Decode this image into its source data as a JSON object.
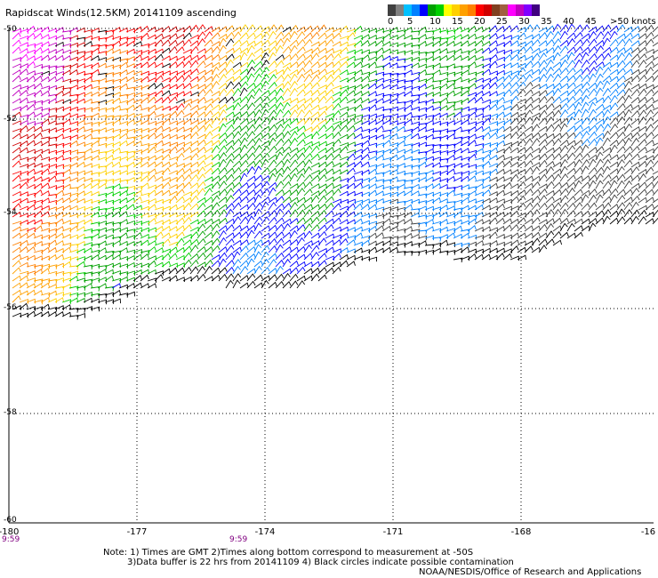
{
  "title": "Rapidscat Winds(12.5KM) 20141109 ascending",
  "legend": {
    "unit_label": ">50 knots",
    "ticks": [
      "0",
      "5",
      "10",
      "15",
      "20",
      "25",
      "30",
      "35",
      "40",
      "45"
    ],
    "colors": [
      "#404040",
      "#808080",
      "#00c0ff",
      "#0080ff",
      "#0000ff",
      "#00a000",
      "#00d000",
      "#ffff00",
      "#ffd000",
      "#ffa000",
      "#ff8000",
      "#ff0000",
      "#d00000",
      "#804020",
      "#a06040",
      "#ff00ff",
      "#c000c0",
      "#8000ff",
      "#400080"
    ]
  },
  "map": {
    "lon_ticks": [
      "-180",
      "-177",
      "-174",
      "-171",
      "-168",
      "-16"
    ],
    "lat_ticks": [
      "-50",
      "-52",
      "-54",
      "-56",
      "-58",
      "-60"
    ],
    "lon_range": [
      -180,
      -165
    ],
    "lat_range": [
      -60,
      -50
    ],
    "grid": true
  },
  "times": [
    "9:59",
    "9:59"
  ],
  "notes": {
    "line1": "Note: 1) Times are GMT 2)Times along bottom correspond to measurement at -50S",
    "line2": "3)Data buffer is 22 hrs from 20141109 4) Black circles indicate possible contamination",
    "credit": "NOAA/NESDIS/Office of Research and Applications"
  }
}
